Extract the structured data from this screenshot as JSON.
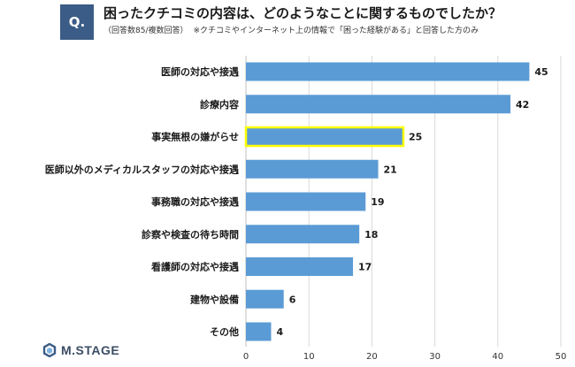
{
  "header": {
    "badge": "Q.",
    "title": "困ったクチコミの内容は、どのようなことに関するものでしたか？",
    "subtitle_part1": "（回答数85/複数回答）",
    "subtitle_part2": "※クチコミやインターネット上の情報で「困った経験がある」と回答した方のみ"
  },
  "logo": {
    "text": "M.STAGE",
    "icon": "m-stage-logo-icon"
  },
  "colors": {
    "bar": "#5b9bd5",
    "highlight_border": "#ffff00",
    "badge": "#3b5c86",
    "grid": "#d9d9d9"
  },
  "chart_data": {
    "type": "bar",
    "orientation": "horizontal",
    "categories": [
      "医師の対応や接遇",
      "診療内容",
      "事実無根の嫌がらせ",
      "医師以外のメディカルスタッフの対応や接遇",
      "事務職の対応や接遇",
      "診察や検査の待ち時間",
      "看護師の対応や接遇",
      "建物や設備",
      "その他"
    ],
    "values": [
      45,
      42,
      25,
      21,
      19,
      18,
      17,
      6,
      4
    ],
    "highlighted_category": "事実無根の嫌がらせ",
    "xlim": [
      0,
      50
    ],
    "xticks": [
      0,
      10,
      20,
      30,
      40,
      50
    ],
    "grid": true,
    "data_labels": true
  }
}
